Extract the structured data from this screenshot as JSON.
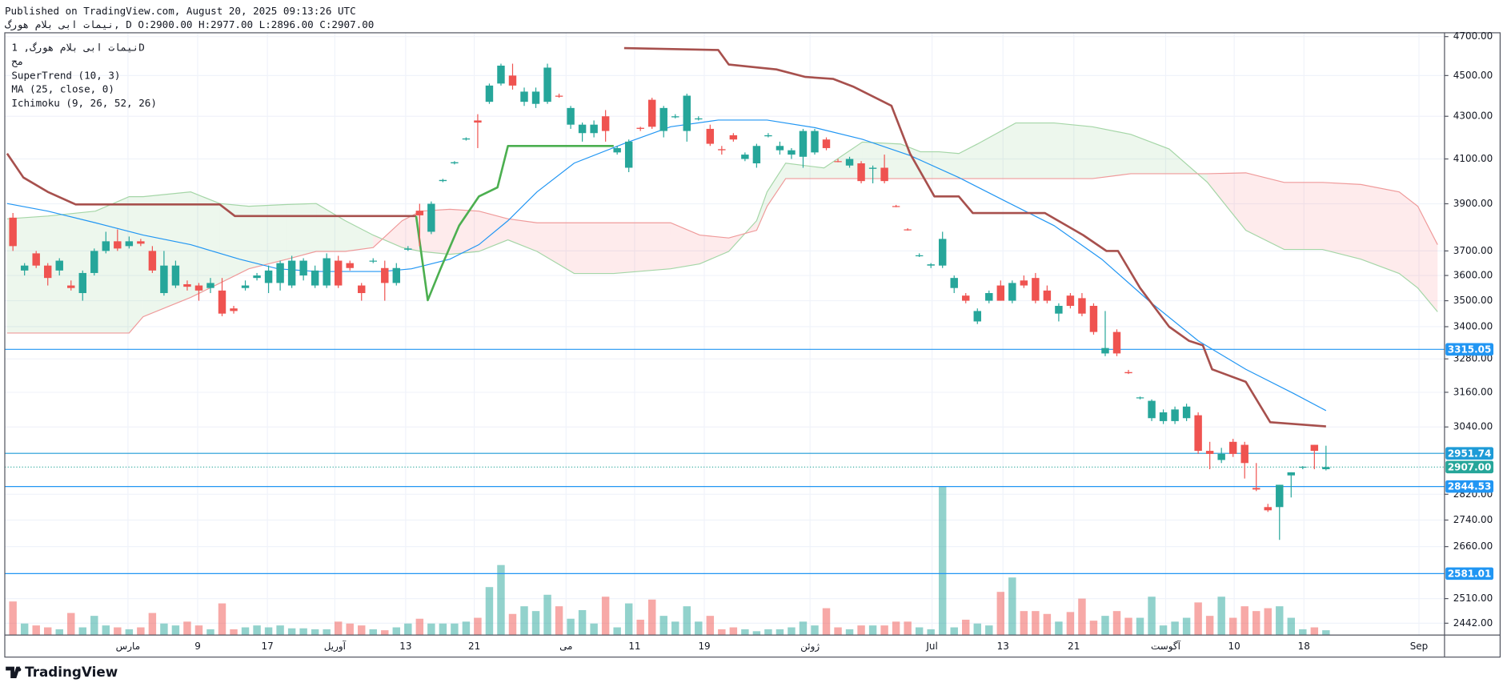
{
  "chart_data": {
    "type": "candlestick",
    "published": "Published on TradingView.com, August 20, 2025 09:13:26 UTC",
    "ohlc_line": "نیمات ابی بلام هورگ, D O:2900.00 H:2977.00 L:2896.00 C:2907.00",
    "legend": [
      "نیمات ابی بلام هورگ, 1D",
      "مح",
      "SuperTrend (10, 3)",
      "MA (25, close, 0)",
      "Ichimoku (9, 26, 52, 26)"
    ],
    "log_scale": true,
    "grid": true,
    "xlim": [
      -0.7,
      123.2
    ],
    "xticks": [
      {
        "value": 9.9,
        "label": "مارس"
      },
      {
        "value": 15.9,
        "label": "9"
      },
      {
        "value": 21.9,
        "label": "17"
      },
      {
        "value": 27.7,
        "label": "آوریل"
      },
      {
        "value": 33.8,
        "label": "13"
      },
      {
        "value": 39.7,
        "label": "21"
      },
      {
        "value": 47.6,
        "label": "می"
      },
      {
        "value": 53.5,
        "label": "11"
      },
      {
        "value": 59.5,
        "label": "19"
      },
      {
        "value": 68.6,
        "label": "ژوئن"
      },
      {
        "value": 79.1,
        "label": "Jul"
      },
      {
        "value": 85.2,
        "label": "13"
      },
      {
        "value": 91.3,
        "label": "21"
      },
      {
        "value": 99.2,
        "label": "آگوست"
      },
      {
        "value": 105.1,
        "label": "10"
      },
      {
        "value": 111.1,
        "label": "18"
      },
      {
        "value": 121.0,
        "label": "Sep"
      }
    ],
    "ylim": [
      2410,
      4720
    ],
    "yticks": [
      {
        "value": 4700,
        "label": "4700.00"
      },
      {
        "value": 4500,
        "label": "4500.00"
      },
      {
        "value": 4300,
        "label": "4300.00"
      },
      {
        "value": 4100,
        "label": "4100.00"
      },
      {
        "value": 3900,
        "label": "3900.00"
      },
      {
        "value": 3700,
        "label": "3700.00"
      },
      {
        "value": 3600,
        "label": "3600.00"
      },
      {
        "value": 3500,
        "label": "3500.00"
      },
      {
        "value": 3400,
        "label": "3400.00"
      },
      {
        "value": 3280,
        "label": "3280.00"
      },
      {
        "value": 3160,
        "label": "3160.00"
      },
      {
        "value": 3040,
        "label": "3040.00"
      },
      {
        "value": 2820,
        "label": "2820.00"
      },
      {
        "value": 2740,
        "label": "2740.00"
      },
      {
        "value": 2660,
        "label": "2660.00"
      },
      {
        "value": 2510,
        "label": "2510.00"
      },
      {
        "value": 2442,
        "label": "2442.00"
      }
    ],
    "up_color": "#26a69a",
    "down_color": "#ef5350",
    "open": [
      3840,
      3620,
      3690,
      3640,
      3620,
      3560,
      3530,
      3610,
      3700,
      3740,
      3720,
      3740,
      3700,
      3530,
      3560,
      3565,
      3560,
      3550,
      3540,
      3470,
      3550,
      3590,
      3570,
      3570,
      3560,
      3600,
      3560,
      3560,
      3660,
      3650,
      3560,
      3660,
      3630,
      3570,
      3705,
      3870,
      3780,
      4000,
      4080,
      4190,
      4280,
      4370,
      4460,
      4500,
      4370,
      4360,
      4370,
      4400,
      4260,
      4220,
      4220,
      4300,
      4130,
      4060,
      4245,
      4380,
      4230,
      4295,
      4230,
      4285,
      4240,
      4145,
      4210,
      4100,
      4080,
      4205,
      4140,
      4120,
      4110,
      4130,
      4190,
      4090,
      4070,
      4080,
      4055,
      4060,
      3890,
      3790,
      3680,
      3640,
      3640,
      3550,
      3520,
      3420,
      3500,
      3560,
      3500,
      3580,
      3590,
      3540,
      3450,
      3520,
      3510,
      3480,
      3300,
      3380,
      3232,
      3140,
      3070,
      3060,
      3060,
      3070,
      3080,
      2960,
      2930,
      2990,
      2980,
      2840,
      2780,
      2780,
      2880,
      2905,
      2980,
      2900
    ],
    "high": [
      3860,
      3650,
      3700,
      3650,
      3670,
      3580,
      3620,
      3710,
      3780,
      3790,
      3760,
      3750,
      3720,
      3700,
      3660,
      3580,
      3570,
      3590,
      3590,
      3480,
      3580,
      3610,
      3640,
      3660,
      3680,
      3670,
      3640,
      3690,
      3680,
      3660,
      3570,
      3670,
      3660,
      3650,
      3720,
      3900,
      3910,
      4010,
      4090,
      4200,
      4310,
      4460,
      4560,
      4560,
      4440,
      4440,
      4560,
      4410,
      4350,
      4270,
      4280,
      4330,
      4160,
      4190,
      4250,
      4390,
      4350,
      4310,
      4410,
      4300,
      4260,
      4160,
      4220,
      4130,
      4170,
      4220,
      4180,
      4150,
      4240,
      4240,
      4200,
      4100,
      4110,
      4090,
      4070,
      4120,
      3895,
      3795,
      3690,
      3650,
      3780,
      3600,
      3530,
      3470,
      3540,
      3580,
      3580,
      3600,
      3610,
      3560,
      3490,
      3530,
      3530,
      3490,
      3460,
      3390,
      3240,
      3145,
      3135,
      3100,
      3110,
      3120,
      3090,
      2990,
      2970,
      3000,
      2990,
      2920,
      2790,
      2850,
      2890,
      2910,
      2980,
      2977
    ],
    "low": [
      3700,
      3600,
      3630,
      3560,
      3600,
      3540,
      3500,
      3600,
      3690,
      3700,
      3710,
      3720,
      3610,
      3520,
      3550,
      3540,
      3500,
      3530,
      3440,
      3450,
      3540,
      3580,
      3530,
      3540,
      3550,
      3580,
      3550,
      3550,
      3550,
      3620,
      3500,
      3650,
      3500,
      3560,
      3700,
      3720,
      3770,
      3995,
      4075,
      4185,
      4150,
      4360,
      4450,
      4430,
      4350,
      4340,
      4360,
      4390,
      4240,
      4180,
      4200,
      4180,
      4120,
      4040,
      4230,
      4240,
      4200,
      4290,
      4180,
      4280,
      4160,
      4120,
      4180,
      4090,
      4060,
      4200,
      4120,
      4100,
      4060,
      4120,
      4140,
      4085,
      4060,
      3990,
      3990,
      3990,
      3885,
      3785,
      3675,
      3630,
      3630,
      3530,
      3490,
      3410,
      3490,
      3500,
      3490,
      3550,
      3490,
      3490,
      3420,
      3470,
      3440,
      3370,
      3290,
      3290,
      3225,
      3135,
      3060,
      3050,
      3050,
      3060,
      2950,
      2900,
      2920,
      2940,
      2870,
      2830,
      2765,
      2680,
      2810,
      2900,
      2900,
      2896
    ],
    "close": [
      3720,
      3640,
      3640,
      3590,
      3660,
      3550,
      3610,
      3700,
      3740,
      3710,
      3740,
      3730,
      3620,
      3640,
      3640,
      3555,
      3540,
      3570,
      3450,
      3460,
      3560,
      3600,
      3620,
      3650,
      3660,
      3660,
      3620,
      3670,
      3560,
      3630,
      3530,
      3660,
      3570,
      3630,
      3710,
      3850,
      3900,
      4005,
      4085,
      4195,
      4270,
      4450,
      4550,
      4450,
      4420,
      4420,
      4540,
      4395,
      4340,
      4260,
      4260,
      4230,
      4150,
      4180,
      4240,
      4250,
      4340,
      4300,
      4400,
      4290,
      4170,
      4140,
      4190,
      4120,
      4160,
      4210,
      4160,
      4140,
      4230,
      4230,
      4150,
      4088,
      4100,
      4000,
      4060,
      4000,
      3888,
      3788,
      3682,
      3645,
      3750,
      3590,
      3500,
      3460,
      3530,
      3500,
      3570,
      3560,
      3500,
      3500,
      3480,
      3480,
      3450,
      3380,
      3320,
      3300,
      3228,
      3142,
      3130,
      3090,
      3100,
      3110,
      2960,
      2950,
      2950,
      2950,
      2920,
      2835,
      2770,
      2850,
      2890,
      2908,
      2960,
      2907
    ],
    "volume": [
      35,
      12,
      10,
      8,
      6,
      23,
      8,
      20,
      10,
      8,
      6,
      8,
      23,
      12,
      10,
      14,
      10,
      6,
      33,
      6,
      8,
      10,
      8,
      10,
      7,
      7,
      6,
      6,
      14,
      12,
      10,
      6,
      5,
      8,
      12,
      17,
      12,
      12,
      12,
      14,
      18,
      50,
      73,
      22,
      30,
      25,
      42,
      30,
      17,
      26,
      12,
      40,
      8,
      33,
      16,
      37,
      20,
      14,
      30,
      14,
      20,
      6,
      8,
      6,
      4,
      6,
      6,
      8,
      14,
      10,
      28,
      8,
      6,
      10,
      10,
      10,
      14,
      14,
      8,
      6,
      155,
      8,
      16,
      12,
      10,
      45,
      60,
      25,
      25,
      22,
      14,
      24,
      38,
      15,
      20,
      25,
      18,
      18,
      40,
      10,
      14,
      18,
      34,
      20,
      40,
      18,
      30,
      25,
      28,
      30,
      18,
      6,
      8,
      5
    ],
    "price_lines": [
      3315.05,
      2951.74,
      2844.53,
      2581.01
    ],
    "price_line_colors": [
      "#2196f3",
      "#1e9bd7",
      "#2196f3",
      "#2196f3"
    ],
    "last_price": {
      "value": 2907,
      "label": "2907.00"
    },
    "last_price_color": "#26a69a",
    "ma": {
      "color": "#2196f3",
      "x": [
        -0.5,
        3,
        7.1,
        11.2,
        15.3,
        19.5,
        22.8,
        26.1,
        31.8,
        34.3,
        37.6,
        40.1,
        42.6,
        45.1,
        48.3,
        52.5,
        56.6,
        60.7,
        64.9,
        69,
        73.1,
        77.2,
        81.4,
        85.5,
        89.6,
        93.7,
        97.9,
        102,
        106.1,
        110.2,
        113
      ],
      "values": [
        3901,
        3868,
        3818,
        3766,
        3726,
        3666,
        3627,
        3616,
        3616,
        3627,
        3666,
        3726,
        3827,
        3952,
        4081,
        4169,
        4250,
        4282,
        4282,
        4246,
        4191,
        4116,
        4016,
        3909,
        3806,
        3666,
        3494,
        3347,
        3242,
        3156,
        3096
      ]
    },
    "supertrend": [
      {
        "color": "#a7504d",
        "x": [
          -0.5,
          0.9,
          3,
          5.4,
          17.8,
          19.1,
          34.7
        ],
        "values": [
          4125,
          4016,
          3952,
          3897,
          3897,
          3847,
          3847
        ]
      },
      {
        "color": "#4caf50",
        "x": [
          34.7,
          35.7,
          36.8,
          38.4,
          40.1,
          41.7,
          42.6,
          51.7
        ],
        "values": [
          3847,
          3502,
          3627,
          3806,
          3932,
          3972,
          4160,
          4160
        ]
      },
      {
        "color": "#a7504d",
        "x": [
          52.6,
          60.7,
          61.6,
          64,
          65.7,
          68.2,
          70.6,
          72.3,
          75.6,
          77.2,
          79.3,
          81.4,
          82.6,
          88.8,
          92.1,
          94.1,
          95.1,
          97,
          99.5,
          101.2,
          102.4,
          103.2,
          106.1,
          108.2,
          113
        ],
        "values": [
          4640,
          4630,
          4556,
          4541,
          4531,
          4493,
          4483,
          4445,
          4351,
          4125,
          3932,
          3932,
          3860,
          3860,
          3766,
          3700,
          3700,
          3550,
          3400,
          3347,
          3330,
          3242,
          3197,
          3056,
          3042
        ]
      }
    ],
    "ichimoku": {
      "span_a_color": "#a5d6a7",
      "span_b_color": "#ef9a9a",
      "up_fill": "#4caf50",
      "down_fill": "#f23645",
      "x": [
        -0.5,
        3,
        7.1,
        10,
        11.2,
        15.3,
        17.8,
        20.3,
        23.6,
        26.1,
        28.6,
        31,
        33.5,
        35.1,
        37.6,
        40.1,
        42.6,
        45.1,
        48.3,
        51.7,
        56.6,
        59.1,
        61.6,
        64,
        64.9,
        66.5,
        69.8,
        73.1,
        76.4,
        78.1,
        79.7,
        81.4,
        83,
        86.3,
        89.6,
        92.9,
        96.2,
        99.5,
        102.8,
        106.1,
        109.4,
        112.7,
        116,
        119.3,
        120.9,
        122.6
      ],
      "span_a": [
        3835,
        3847,
        3868,
        3931,
        3931,
        3952,
        3901,
        3889,
        3897,
        3901,
        3827,
        3766,
        3714,
        3698,
        3686,
        3698,
        3746,
        3698,
        3608,
        3608,
        3627,
        3647,
        3698,
        3827,
        3952,
        4081,
        4059,
        4178,
        4169,
        4133,
        4133,
        4125,
        4169,
        4268,
        4268,
        4250,
        4214,
        4146,
        3994,
        3786,
        3706,
        3706,
        3666,
        3608,
        3550,
        3457
      ],
      "span_b": [
        3376,
        3376,
        3376,
        3376,
        3438,
        3513,
        3569,
        3627,
        3666,
        3698,
        3698,
        3714,
        3827,
        3868,
        3876,
        3868,
        3835,
        3818,
        3818,
        3818,
        3818,
        3766,
        3754,
        3786,
        3889,
        4011,
        4011,
        4011,
        4011,
        4011,
        4011,
        4011,
        4011,
        4011,
        4011,
        4011,
        4033,
        4033,
        4033,
        4037,
        3994,
        3994,
        3985,
        3952,
        3889,
        3726
      ]
    }
  },
  "footer": {
    "logo": "TradingView"
  }
}
